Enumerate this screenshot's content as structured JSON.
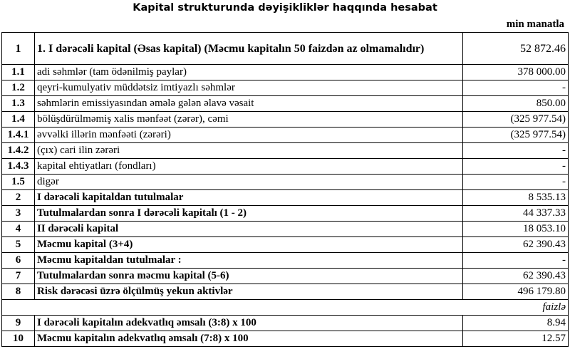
{
  "title": "Kapital strukturunda dəyişikliklər haqqında hesabat",
  "unit": "min manatla",
  "rows": [
    {
      "no": "1",
      "label": "1. I dərəcəli kapital (Əsas kapital) (Məcmu kapitalın 50 faizdən  az olmamalıdır)",
      "value": "52 872.46",
      "bold": true,
      "big": true
    },
    {
      "no": "1.1",
      "label": "adi səhmlər (tam ödənilmiş paylar)",
      "value": "378 000.00"
    },
    {
      "no": "1.2",
      "label": "qeyri-kumulyativ müddətsiz imtiyazlı səhmlər",
      "value": "-"
    },
    {
      "no": "1.3",
      "label": "səhmlərin emissiyasından əmələ gələn  əlavə vəsait",
      "value": "850.00"
    },
    {
      "no": "1.4",
      "label": "bölüşdürülməmiş xalis mənfəət (zərər), cəmi",
      "value": "(325 977.54)"
    },
    {
      "no": "1.4.1",
      "label": "əvvəlki illərin mənfəəti (zərəri)",
      "value": "(325 977.54)"
    },
    {
      "no": "1.4.2",
      "label": "(çıx) cari ilin zərəri",
      "value": "-"
    },
    {
      "no": "1.4.3",
      "label": "kapital ehtiyatları (fondları)",
      "value": "-"
    },
    {
      "no": "1.5",
      "label": "digər",
      "value": "-"
    },
    {
      "no": "2",
      "label": "I dərəcəli kapitaldan  tutulmalar",
      "value": "8 535.13",
      "bold": true
    },
    {
      "no": "3",
      "label": "Tutulmalardan  sonra I dərəcəli kapitalı (1 - 2)",
      "value": "44 337.33",
      "bold": true
    },
    {
      "no": "4",
      "label": "II dərəcəli  kapital",
      "value": "18 053.10",
      "bold": true
    },
    {
      "no": "5",
      "label": "Məcmu kapital (3+4)",
      "value": "62 390.43",
      "bold": true
    },
    {
      "no": "6",
      "label": "Məcmu kapitaldan tutulmalar :",
      "value": "-",
      "bold": true
    },
    {
      "no": "7",
      "label": "Tutulmalardan sonra məcmu kapital (5-6)",
      "value": "62 390.43",
      "bold": true
    },
    {
      "no": "8",
      "label": "Risk dərəcəsi üzrə ölçülmüş  yekun aktivlər",
      "value": "496 179.80",
      "bold": true
    }
  ],
  "percent_unit": "faizlə",
  "ratio_rows": [
    {
      "no": "9",
      "label": "I dərəcəli  kapitalın  adekvatlıq əmsalı (3:8) x 100",
      "value": "8.94"
    },
    {
      "no": "10",
      "label": "Məcmu kapitalın  adekvatlıq  əmsalı (7:8) x 100",
      "value": "12.57"
    }
  ]
}
